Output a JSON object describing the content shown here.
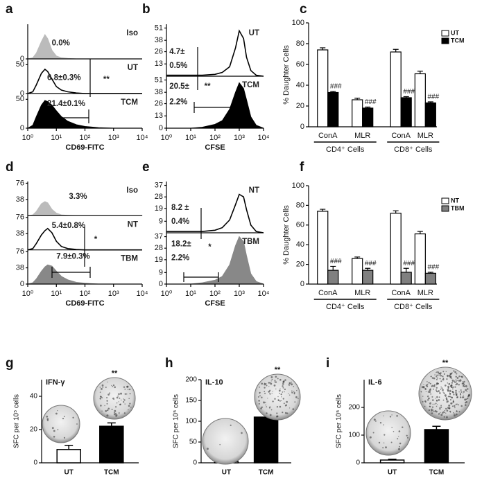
{
  "chart_data": [
    {
      "type": "flow",
      "panel_label": "a",
      "xscale": "log",
      "xlim": [
        1,
        10000
      ],
      "xticks": [
        {
          "value": 1,
          "label": "10⁰"
        },
        {
          "value": 10,
          "label": "10¹"
        },
        {
          "value": 100,
          "label": "10²"
        },
        {
          "value": 1000,
          "label": "10³"
        },
        {
          "value": 10000,
          "label": "10⁴"
        }
      ],
      "xlabel": "CD69-FITC",
      "x": [
        1,
        1.5,
        2,
        3,
        4,
        5,
        7,
        10,
        15,
        25,
        50,
        100,
        300,
        1000,
        10000
      ],
      "series": [
        {
          "name": "Iso",
          "color": "#bbbbbb",
          "fill": true,
          "ylim": [
            0,
            60
          ],
          "yticks": [
            0
          ],
          "values": [
            0,
            2,
            10,
            30,
            42,
            35,
            15,
            5,
            2,
            1,
            0,
            0,
            0,
            0,
            0
          ],
          "annotations": [
            "0.0%"
          ]
        },
        {
          "name": "UT",
          "color": "#000000",
          "fill": false,
          "ylim": [
            0,
            60
          ],
          "yticks": [
            0,
            50
          ],
          "values": [
            0,
            3,
            15,
            35,
            42,
            38,
            25,
            12,
            6,
            3,
            1,
            0,
            0,
            0,
            0
          ],
          "annotations": [
            "6.8±0.3%",
            "**"
          ]
        },
        {
          "name": "TCM",
          "color": "#000000",
          "fill": true,
          "ylim": [
            0,
            60
          ],
          "yticks": [
            0,
            50
          ],
          "values": [
            0,
            5,
            20,
            40,
            48,
            46,
            40,
            30,
            20,
            12,
            6,
            3,
            1,
            0,
            0
          ],
          "annotations": [
            "21.4±0.1%"
          ]
        }
      ]
    },
    {
      "type": "flow",
      "panel_label": "b",
      "xscale": "log",
      "xlim": [
        1,
        10000
      ],
      "xticks": [
        {
          "value": 1,
          "label": "10⁰"
        },
        {
          "value": 10,
          "label": "10¹"
        },
        {
          "value": 100,
          "label": "10²"
        },
        {
          "value": 1000,
          "label": "10³"
        },
        {
          "value": 10000,
          "label": "10⁴"
        }
      ],
      "xlabel": "CFSE",
      "x": [
        1,
        3,
        10,
        30,
        100,
        200,
        400,
        700,
        1000,
        1500,
        2000,
        3000,
        5000,
        10000
      ],
      "series": [
        {
          "name": "UT",
          "color": "#000000",
          "fill": false,
          "ylim": [
            0,
            55
          ],
          "yticks": [
            13,
            26,
            38,
            51
          ],
          "values": [
            1,
            1,
            1,
            1,
            2,
            4,
            10,
            30,
            48,
            40,
            20,
            6,
            1,
            0
          ],
          "annotations": [
            "4.7±",
            "0.5%"
          ]
        },
        {
          "name": "TCM",
          "color": "#000000",
          "fill": true,
          "ylim": [
            0,
            55
          ],
          "yticks": [
            0,
            13,
            26,
            38,
            51
          ],
          "values": [
            0,
            0,
            0,
            1,
            4,
            8,
            20,
            38,
            48,
            42,
            30,
            12,
            3,
            0
          ],
          "annotations": [
            "20.5±",
            "**",
            "2.2%"
          ]
        }
      ]
    },
    {
      "type": "grouped_bar",
      "panel_label": "c",
      "categories": [
        "ConA",
        "MLR",
        "ConA",
        "MLR"
      ],
      "groups": [
        "CD4⁺ Cells",
        "CD8⁺ Cells"
      ],
      "ylabel": "% Daughter Cells",
      "ylim": [
        0,
        100
      ],
      "yticks": [
        0,
        20,
        40,
        60,
        80,
        100
      ],
      "legend": "upper right",
      "series": [
        {
          "name": "UT",
          "color": "#ffffff",
          "values": [
            74,
            26,
            72,
            51
          ],
          "errors": [
            2,
            1.5,
            2.5,
            2.5
          ]
        },
        {
          "name": "TCM",
          "color": "#000000",
          "values": [
            33,
            18,
            28,
            23
          ],
          "errors": [
            1,
            1,
            1,
            1
          ],
          "annotations": [
            "###",
            "###",
            "###",
            "###"
          ]
        }
      ]
    },
    {
      "type": "flow",
      "panel_label": "d",
      "xscale": "log",
      "xlim": [
        1,
        10000
      ],
      "xticks": [
        {
          "value": 1,
          "label": "10⁰"
        },
        {
          "value": 10,
          "label": "10¹"
        },
        {
          "value": 100,
          "label": "10²"
        },
        {
          "value": 1000,
          "label": "10³"
        },
        {
          "value": 10000,
          "label": "10⁴"
        }
      ],
      "xlabel": "CD69-FITC",
      "x": [
        1,
        1.5,
        2,
        3,
        4,
        5,
        7,
        10,
        15,
        25,
        50,
        100,
        300,
        1000,
        10000
      ],
      "series": [
        {
          "name": "Iso",
          "color": "#bbbbbb",
          "fill": true,
          "ylim": [
            0,
            80
          ],
          "yticks": [
            38,
            76
          ],
          "values": [
            0,
            2,
            10,
            28,
            33,
            30,
            15,
            6,
            2,
            1,
            0,
            0,
            0,
            0,
            0
          ],
          "annotations": [
            "3.3%"
          ]
        },
        {
          "name": "NT",
          "color": "#000000",
          "fill": false,
          "ylim": [
            0,
            80
          ],
          "yticks": [
            38,
            76
          ],
          "values": [
            0,
            3,
            15,
            35,
            45,
            50,
            40,
            20,
            8,
            3,
            1,
            0,
            0,
            0,
            0
          ],
          "annotations": [
            "5.4±0.8%",
            "*"
          ]
        },
        {
          "name": "TBM",
          "color": "#888888",
          "fill": true,
          "ylim": [
            0,
            80
          ],
          "yticks": [
            0,
            38,
            76
          ],
          "values": [
            0,
            3,
            12,
            30,
            40,
            45,
            42,
            30,
            18,
            10,
            4,
            2,
            0,
            0,
            0
          ],
          "annotations": [
            "7.9±0.3%"
          ]
        }
      ]
    },
    {
      "type": "flow",
      "panel_label": "e",
      "xscale": "log",
      "xlim": [
        1,
        10000
      ],
      "xticks": [
        {
          "value": 1,
          "label": "10⁰"
        },
        {
          "value": 10,
          "label": "10¹"
        },
        {
          "value": 100,
          "label": "10²"
        },
        {
          "value": 1000,
          "label": "10³"
        },
        {
          "value": 10000,
          "label": "10⁴"
        }
      ],
      "xlabel": "CFSE",
      "x": [
        1,
        3,
        10,
        30,
        100,
        200,
        400,
        700,
        1000,
        1500,
        2000,
        3000,
        5000,
        10000
      ],
      "series": [
        {
          "name": "NT",
          "color": "#000000",
          "fill": false,
          "ylim": [
            0,
            40
          ],
          "yticks": [
            9,
            19,
            28,
            37
          ],
          "values": [
            1,
            1,
            1,
            1,
            2,
            4,
            10,
            22,
            30,
            28,
            18,
            6,
            1,
            0
          ],
          "annotations": [
            "8.2 ±",
            "0.4%"
          ]
        },
        {
          "name": "TBM",
          "color": "#888888",
          "fill": true,
          "ylim": [
            0,
            40
          ],
          "yticks": [
            0,
            9,
            19,
            28,
            37
          ],
          "values": [
            0,
            0,
            0,
            1,
            3,
            6,
            15,
            30,
            37,
            33,
            22,
            8,
            2,
            0
          ],
          "annotations": [
            "18.2±",
            "*",
            "2.2%"
          ]
        }
      ]
    },
    {
      "type": "grouped_bar",
      "panel_label": "f",
      "categories": [
        "ConA",
        "MLR",
        "ConA",
        "MLR"
      ],
      "groups": [
        "CD4⁺ Cells",
        "CD8⁺ Cells"
      ],
      "ylabel": "% Daughter Cells",
      "ylim": [
        0,
        100
      ],
      "yticks": [
        0,
        20,
        40,
        60,
        80,
        100
      ],
      "legend": "upper right",
      "series": [
        {
          "name": "NT",
          "color": "#ffffff",
          "values": [
            74,
            26,
            72,
            51
          ],
          "errors": [
            2,
            1.5,
            2.5,
            2.5
          ]
        },
        {
          "name": "TBM",
          "color": "#808080",
          "values": [
            14,
            14,
            12,
            11
          ],
          "errors": [
            4,
            2,
            4,
            1
          ],
          "annotations": [
            "###",
            "###",
            "###",
            "###"
          ]
        }
      ]
    },
    {
      "type": "bar",
      "panel_label": "g",
      "title": "IFN-γ",
      "ylabel": "SFC per 10⁵ cells",
      "categories": [
        "UT",
        "TCM"
      ],
      "values": [
        8,
        22
      ],
      "errors": [
        2.5,
        2
      ],
      "colors": [
        "#ffffff",
        "#000000"
      ],
      "annotations": [
        null,
        "**"
      ],
      "ylim": [
        0,
        50
      ],
      "yticks": [
        0,
        20,
        40
      ]
    },
    {
      "type": "bar",
      "panel_label": "h",
      "title": "IL-10",
      "ylabel": "SFC per 10⁵ cells",
      "categories": [
        "UT",
        "TCM"
      ],
      "values": [
        3,
        110
      ],
      "errors": [
        2,
        10
      ],
      "colors": [
        "#ffffff",
        "#000000"
      ],
      "annotations": [
        null,
        "**"
      ],
      "ylim": [
        0,
        200
      ],
      "yticks": [
        0,
        50,
        100,
        150,
        200
      ]
    },
    {
      "type": "bar",
      "panel_label": "i",
      "title": "IL-6",
      "ylabel": "SFC per 10⁵ cells",
      "categories": [
        "UT",
        "TCM"
      ],
      "values": [
        10,
        120
      ],
      "errors": [
        3,
        12
      ],
      "colors": [
        "#ffffff",
        "#000000"
      ],
      "annotations": [
        null,
        "**"
      ],
      "ylim": [
        0,
        300
      ],
      "yticks": [
        0,
        100,
        200
      ]
    }
  ]
}
